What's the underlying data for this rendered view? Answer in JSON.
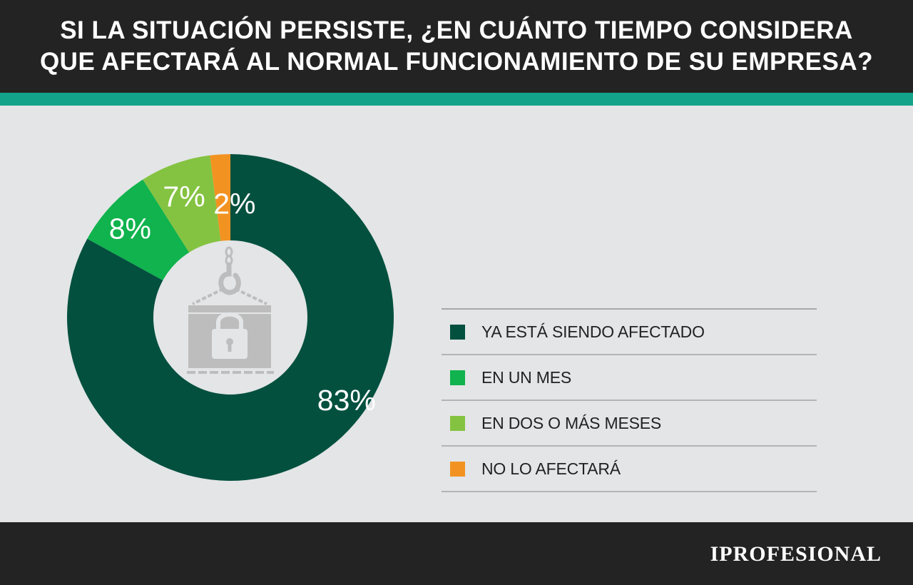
{
  "header": {
    "line1": "SI LA SITUACIÓN PERSISTE, ¿EN CUÁNTO TIEMPO CONSIDERA",
    "line2": "QUE AFECTARÁ AL NORMAL FUNCIONAMIENTO DE SU EMPRESA?"
  },
  "colors": {
    "header_bg": "#232323",
    "accent_bar": "#13a38a",
    "background": "#e3e5e6",
    "icon_gray": "#bdbdbd"
  },
  "center_icon": "padlocked-crate-on-hook-icon",
  "chart_data": {
    "type": "pie",
    "variant": "donut",
    "title": "SI LA SITUACIÓN PERSISTE, ¿EN CUÁNTO TIEMPO CONSIDERA QUE AFECTARÁ AL NORMAL FUNCIONAMIENTO DE SU EMPRESA?",
    "legend_position": "right",
    "slices": [
      {
        "name": "YA ESTÁ SIENDO AFECTADO",
        "value": 83,
        "label": "83%",
        "color": "#03503f"
      },
      {
        "name": "EN UN MES",
        "value": 8,
        "label": "8%",
        "color": "#10b34d"
      },
      {
        "name": "EN DOS O MÁS MESES",
        "value": 7,
        "label": "7%",
        "color": "#84c341"
      },
      {
        "name": "NO LO AFECTARÁ",
        "value": 2,
        "label": "2%",
        "color": "#f29321"
      }
    ]
  },
  "footer": {
    "brand": "IPROFESIONAL"
  }
}
